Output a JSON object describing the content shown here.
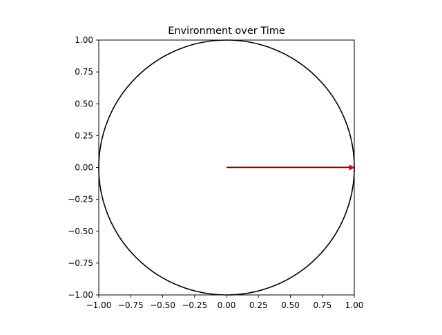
{
  "chart_data": {
    "type": "line",
    "title": "Environment over Time",
    "xlabel": "",
    "ylabel": "",
    "xlim": [
      -1.0,
      1.0
    ],
    "ylim": [
      -1.0,
      1.0
    ],
    "xticks": [
      -1.0,
      -0.75,
      -0.5,
      -0.25,
      0.0,
      0.25,
      0.5,
      0.75,
      1.0
    ],
    "yticks": [
      -1.0,
      -0.75,
      -0.5,
      -0.25,
      0.0,
      0.25,
      0.5,
      0.75,
      1.0
    ],
    "xtick_labels": [
      "−1.00",
      "−0.75",
      "−0.50",
      "−0.25",
      "0.00",
      "0.25",
      "0.50",
      "0.75",
      "1.00"
    ],
    "ytick_labels": [
      "−1.00",
      "−0.75",
      "−0.50",
      "−0.25",
      "0.00",
      "0.25",
      "0.50",
      "0.75",
      "1.00"
    ],
    "grid": false,
    "aspect": "equal",
    "circle": {
      "center": [
        0.0,
        0.0
      ],
      "radius": 1.0,
      "color": "#000000"
    },
    "lines": [
      {
        "x": [
          0.0,
          1.0
        ],
        "y": [
          0.0,
          0.0
        ],
        "color": "#000000"
      }
    ],
    "arrows": [
      {
        "x_start": 0.0,
        "y_start": 0.0,
        "x_end": 1.0,
        "y_end": 0.0,
        "color": "#e00000"
      }
    ]
  }
}
